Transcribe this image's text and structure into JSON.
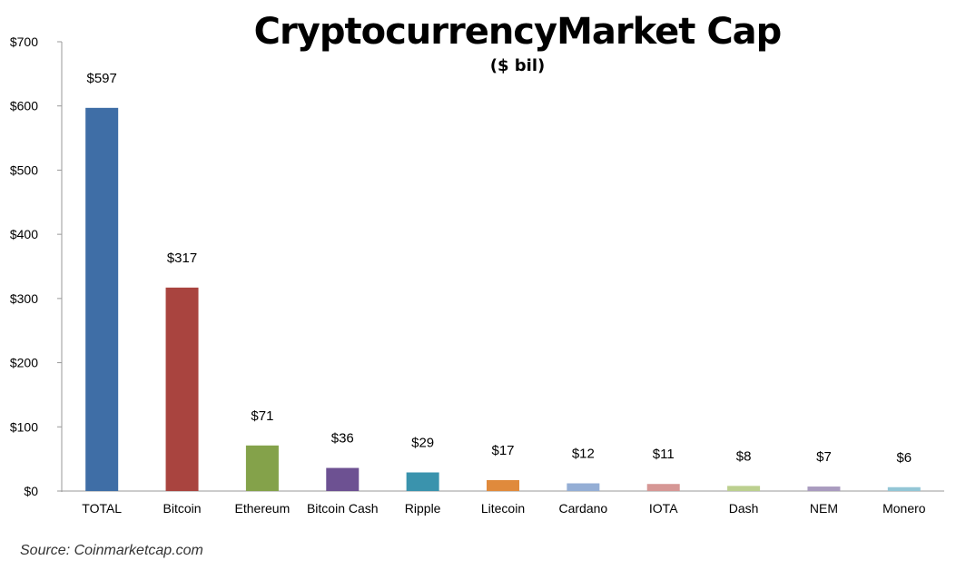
{
  "chart_data": {
    "type": "bar",
    "title": "CryptocurrencyMarket Cap",
    "subtitle": "($ bil)",
    "source": "Source: Coinmarketcap.com",
    "categories": [
      "TOTAL",
      "Bitcoin",
      "Ethereum",
      "Bitcoin Cash",
      "Ripple",
      "Litecoin",
      "Cardano",
      "IOTA",
      "Dash",
      "NEM",
      "Monero"
    ],
    "values": [
      597,
      317,
      71,
      36,
      29,
      17,
      12,
      11,
      8,
      7,
      6
    ],
    "data_labels": [
      "$597",
      "$317",
      "$71",
      "$36",
      "$29",
      "$17",
      "$12",
      "$11",
      "$8",
      "$7",
      "$6"
    ],
    "colors": [
      "#3f6ea6",
      "#a9443f",
      "#84a24a",
      "#6d5192",
      "#3a93ad",
      "#e08a3c",
      "#94aed5",
      "#d69795",
      "#bcd08f",
      "#a99bbf",
      "#93c6d6"
    ],
    "ylim": [
      0,
      700
    ],
    "yticks": [
      0,
      100,
      200,
      300,
      400,
      500,
      600,
      700
    ],
    "ytick_labels": [
      "$0",
      "$100",
      "$200",
      "$300",
      "$400",
      "$500",
      "$600",
      "$700"
    ],
    "grid": false,
    "legend": "none"
  }
}
